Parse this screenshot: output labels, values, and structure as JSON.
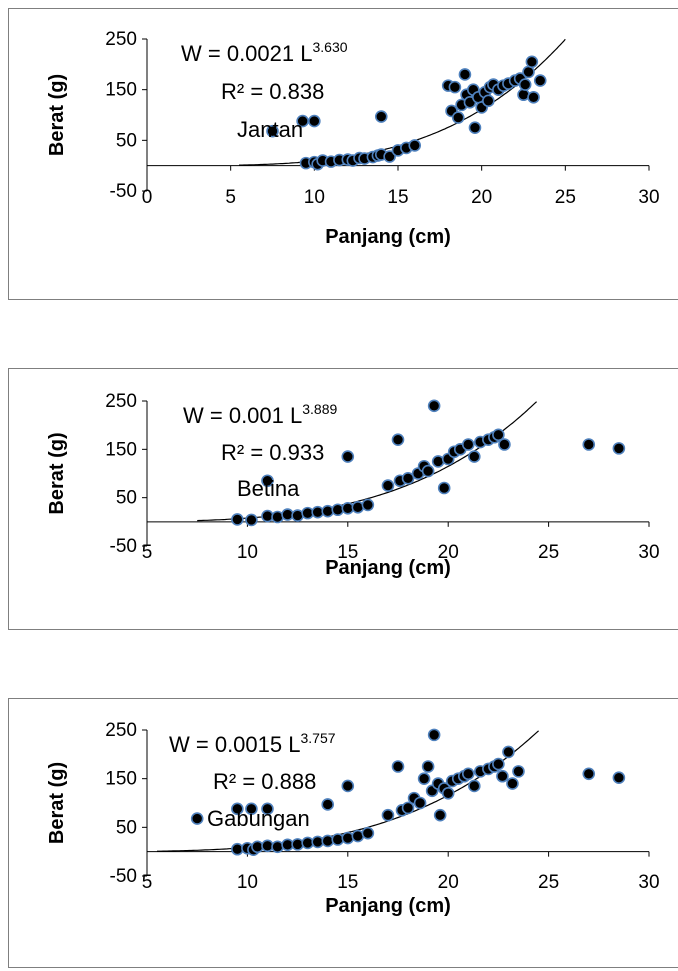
{
  "chart_data": [
    {
      "type": "scatter",
      "xlabel": "Panjang (cm)",
      "ylabel": "Berat (g)",
      "xlim": [
        0,
        30
      ],
      "ylim": [
        -50,
        250
      ],
      "xticks": [
        "0",
        "5",
        "10",
        "15",
        "20",
        "25",
        "30"
      ],
      "yticks": [
        "-50",
        "50",
        "150",
        "250"
      ],
      "equation_prefix": "W = 0.0021 L",
      "equation_exponent": "3.630",
      "r2": "R² = 0.838",
      "series_label": "Jantan",
      "trend": {
        "a": 0.0021,
        "b": 3.63,
        "x_start": 5.5
      },
      "points": [
        [
          7.5,
          68
        ],
        [
          9.3,
          88
        ],
        [
          10,
          88
        ],
        [
          14,
          97
        ],
        [
          9.5,
          5
        ],
        [
          10,
          7
        ],
        [
          10.2,
          3
        ],
        [
          10.5,
          10
        ],
        [
          11,
          8
        ],
        [
          11.5,
          11
        ],
        [
          12,
          12
        ],
        [
          12.3,
          10
        ],
        [
          12.7,
          15
        ],
        [
          13,
          14
        ],
        [
          13.5,
          17
        ],
        [
          13.8,
          20
        ],
        [
          14,
          22
        ],
        [
          14.5,
          18
        ],
        [
          15,
          30
        ],
        [
          15.5,
          35
        ],
        [
          16,
          40
        ],
        [
          18,
          158
        ],
        [
          18.2,
          108
        ],
        [
          18.4,
          155
        ],
        [
          18.6,
          95
        ],
        [
          18.8,
          120
        ],
        [
          19,
          180
        ],
        [
          19.1,
          140
        ],
        [
          19.3,
          125
        ],
        [
          19.5,
          150
        ],
        [
          19.6,
          75
        ],
        [
          19.8,
          135
        ],
        [
          20,
          115
        ],
        [
          20.2,
          145
        ],
        [
          20.4,
          128
        ],
        [
          20.5,
          155
        ],
        [
          20.7,
          160
        ],
        [
          21,
          150
        ],
        [
          21.3,
          158
        ],
        [
          21.6,
          162
        ],
        [
          22,
          168
        ],
        [
          22.3,
          172
        ],
        [
          22.5,
          140
        ],
        [
          22.6,
          160
        ],
        [
          22.8,
          185
        ],
        [
          23,
          205
        ],
        [
          23.1,
          135
        ],
        [
          23.5,
          168
        ]
      ]
    },
    {
      "type": "scatter",
      "xlabel": "Panjang (cm)",
      "ylabel": "Berat (g)",
      "xlim": [
        5,
        30
      ],
      "ylim": [
        -50,
        250
      ],
      "xticks": [
        "5",
        "10",
        "15",
        "20",
        "25",
        "30"
      ],
      "yticks": [
        "-50",
        "50",
        "150",
        "250"
      ],
      "equation_prefix": "W = 0.001 L",
      "equation_exponent": "3.889",
      "r2": "R² = 0.933",
      "series_label": "Betina",
      "trend": {
        "a": 0.001,
        "b": 3.889,
        "x_start": 7.5
      },
      "points": [
        [
          9.5,
          5
        ],
        [
          10.2,
          4
        ],
        [
          11,
          85
        ],
        [
          11,
          12
        ],
        [
          11.5,
          10
        ],
        [
          12,
          15
        ],
        [
          12.5,
          13
        ],
        [
          13,
          18
        ],
        [
          13.5,
          20
        ],
        [
          14,
          22
        ],
        [
          14.5,
          25
        ],
        [
          15,
          28
        ],
        [
          15,
          135
        ],
        [
          15.5,
          30
        ],
        [
          16,
          35
        ],
        [
          17,
          75
        ],
        [
          17.5,
          170
        ],
        [
          17.6,
          85
        ],
        [
          18,
          90
        ],
        [
          18.5,
          100
        ],
        [
          18.8,
          115
        ],
        [
          19,
          105
        ],
        [
          19.3,
          240
        ],
        [
          19.5,
          125
        ],
        [
          19.8,
          70
        ],
        [
          20,
          130
        ],
        [
          20.3,
          145
        ],
        [
          20.6,
          150
        ],
        [
          21,
          160
        ],
        [
          21.3,
          135
        ],
        [
          21.6,
          165
        ],
        [
          22,
          170
        ],
        [
          22.3,
          175
        ],
        [
          22.5,
          180
        ],
        [
          22.8,
          160
        ],
        [
          27,
          160
        ],
        [
          28.5,
          152
        ]
      ]
    },
    {
      "type": "scatter",
      "xlabel": "Panjang (cm)",
      "ylabel": "Berat (g)",
      "xlim": [
        5,
        30
      ],
      "ylim": [
        -50,
        250
      ],
      "xticks": [
        "5",
        "10",
        "15",
        "20",
        "25",
        "30"
      ],
      "yticks": [
        "-50",
        "50",
        "150",
        "250"
      ],
      "equation_prefix": "W = 0.0015 L",
      "equation_exponent": "3.757",
      "r2": "R² = 0.888",
      "series_label": "Gabungan",
      "trend": {
        "a": 0.0015,
        "b": 3.757,
        "x_start": 5.5
      },
      "points": [
        [
          7.5,
          68
        ],
        [
          9.5,
          88
        ],
        [
          10.2,
          88
        ],
        [
          11,
          88
        ],
        [
          14,
          97
        ],
        [
          15,
          135
        ],
        [
          9.5,
          5
        ],
        [
          10,
          7
        ],
        [
          10.3,
          4
        ],
        [
          10.5,
          10
        ],
        [
          11,
          12
        ],
        [
          11.5,
          10
        ],
        [
          12,
          14
        ],
        [
          12.5,
          15
        ],
        [
          13,
          18
        ],
        [
          13.5,
          20
        ],
        [
          14,
          22
        ],
        [
          14.5,
          25
        ],
        [
          15,
          28
        ],
        [
          15.5,
          32
        ],
        [
          16,
          38
        ],
        [
          17,
          75
        ],
        [
          17.5,
          175
        ],
        [
          17.7,
          85
        ],
        [
          18,
          90
        ],
        [
          18.3,
          110
        ],
        [
          18.6,
          100
        ],
        [
          18.8,
          150
        ],
        [
          19,
          175
        ],
        [
          19.2,
          125
        ],
        [
          19.3,
          240
        ],
        [
          19.5,
          140
        ],
        [
          19.6,
          75
        ],
        [
          19.8,
          130
        ],
        [
          20,
          120
        ],
        [
          20.2,
          145
        ],
        [
          20.5,
          150
        ],
        [
          20.8,
          155
        ],
        [
          21,
          160
        ],
        [
          21.3,
          135
        ],
        [
          21.6,
          165
        ],
        [
          22,
          170
        ],
        [
          22.3,
          175
        ],
        [
          22.5,
          180
        ],
        [
          22.7,
          155
        ],
        [
          23,
          205
        ],
        [
          23.2,
          140
        ],
        [
          23.5,
          165
        ],
        [
          27,
          160
        ],
        [
          28.5,
          152
        ]
      ]
    }
  ],
  "colors": {
    "marker_fill": "#000000",
    "marker_edge": "#4f81bd",
    "axis": "#000000",
    "border": "#7f7f7f"
  }
}
